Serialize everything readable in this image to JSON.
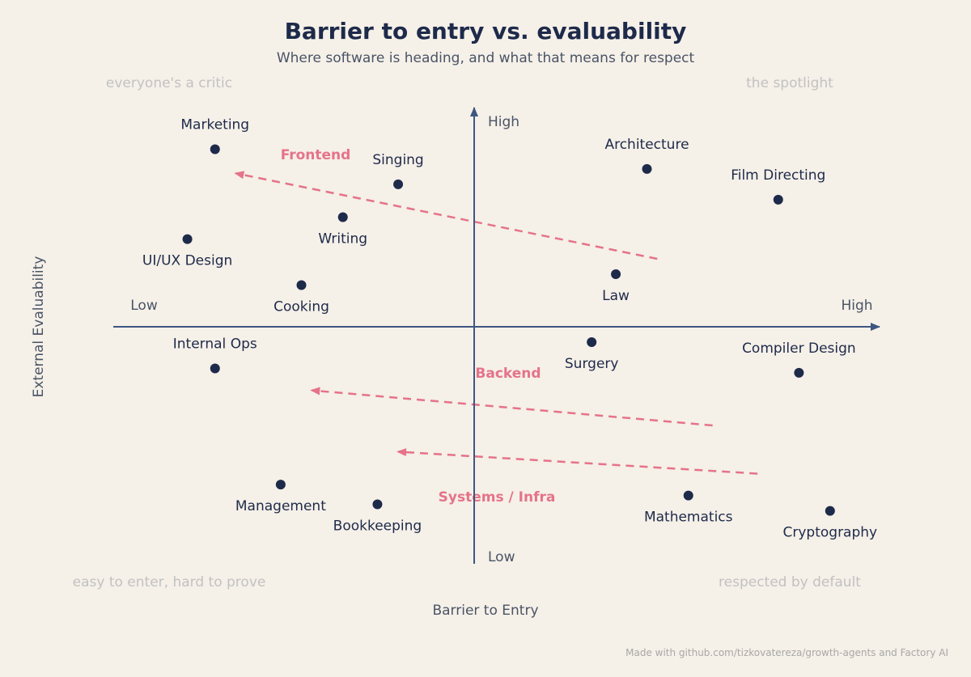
{
  "chart_data": {
    "type": "scatter",
    "title": "Barrier to entry vs. evaluability",
    "subtitle": "Where software is heading, and what that means for respect",
    "xlabel": "Barrier to Entry",
    "ylabel": "External Evaluability",
    "xlim": [
      -1,
      1
    ],
    "ylim": [
      -1,
      1
    ],
    "x_end_labels": {
      "low": "Low",
      "high": "High"
    },
    "y_end_labels": {
      "low": "Low",
      "high": "High"
    },
    "quadrant_labels": {
      "top_left": "everyone's a critic",
      "top_right": "the spotlight",
      "bottom_left": "easy to enter, hard to prove",
      "bottom_right": "respected by default"
    },
    "points": [
      {
        "label": "Marketing",
        "x": -0.75,
        "y": 0.81,
        "label_pos": "above"
      },
      {
        "label": "UI/UX Design",
        "x": -0.83,
        "y": 0.4,
        "label_pos": "below"
      },
      {
        "label": "Writing",
        "x": -0.38,
        "y": 0.5,
        "label_pos": "below"
      },
      {
        "label": "Singing",
        "x": -0.22,
        "y": 0.65,
        "label_pos": "above"
      },
      {
        "label": "Cooking",
        "x": -0.5,
        "y": 0.19,
        "label_pos": "below"
      },
      {
        "label": "Architecture",
        "x": 0.5,
        "y": 0.72,
        "label_pos": "above"
      },
      {
        "label": "Film Directing",
        "x": 0.88,
        "y": 0.58,
        "label_pos": "above"
      },
      {
        "label": "Law",
        "x": 0.41,
        "y": 0.24,
        "label_pos": "below"
      },
      {
        "label": "Internal Ops",
        "x": -0.75,
        "y": -0.19,
        "label_pos": "above"
      },
      {
        "label": "Surgery",
        "x": 0.34,
        "y": -0.07,
        "label_pos": "below"
      },
      {
        "label": "Compiler Design",
        "x": 0.94,
        "y": -0.21,
        "label_pos": "above"
      },
      {
        "label": "Management",
        "x": -0.56,
        "y": -0.72,
        "label_pos": "below"
      },
      {
        "label": "Bookkeeping",
        "x": -0.28,
        "y": -0.81,
        "label_pos": "below"
      },
      {
        "label": "Mathematics",
        "x": 0.62,
        "y": -0.77,
        "label_pos": "below"
      },
      {
        "label": "Cryptography",
        "x": 1.03,
        "y": -0.84,
        "label_pos": "below"
      }
    ],
    "trend_arrows": [
      {
        "label": "Frontend",
        "from": [
          0.53,
          0.31
        ],
        "to": [
          -0.69,
          0.7
        ]
      },
      {
        "label": "Backend",
        "from": [
          0.69,
          -0.45
        ],
        "to": [
          -0.47,
          -0.29
        ]
      },
      {
        "label": "Systems / Infra",
        "from": [
          0.82,
          -0.67
        ],
        "to": [
          -0.22,
          -0.57
        ]
      }
    ],
    "colors": {
      "points": "#1e2a4a",
      "axes": "#3e5680",
      "arrows": "#e57389",
      "background": "#f5f0e8"
    }
  },
  "footer": "Made with github.com/tizkovatereza/growth-agents and Factory AI"
}
